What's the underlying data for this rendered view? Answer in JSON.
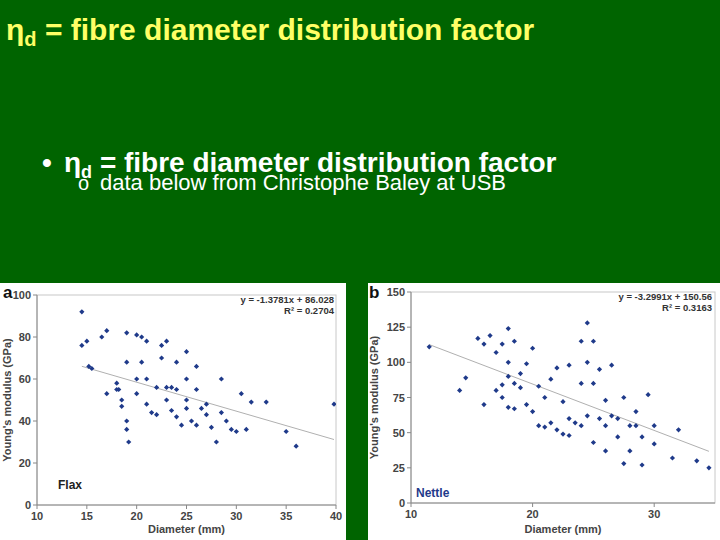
{
  "slide": {
    "title": {
      "symbol": "η",
      "subscript": "d",
      "text": " = fibre diameter distribution factor"
    },
    "bullets": [
      {
        "bullet": "•",
        "symbol": "η",
        "subscript": "d",
        "text": " = fibre diameter distribution factor",
        "children": [
          {
            "bullet": "o",
            "text": "data below from Christophe Baley at USB"
          }
        ]
      }
    ]
  },
  "chart_data": [
    {
      "type": "scatter",
      "panel": "a",
      "label": "Flax",
      "x_label": "Diameter (mm)",
      "y_label": "Young's modulus (GPa)",
      "annotations": [
        "y = -1.3781x + 86.028",
        "R² = 0.2704"
      ],
      "trendline": {
        "slope": -1.3781,
        "intercept": 86.028
      },
      "xlim": [
        10,
        40
      ],
      "ylim": [
        0,
        100
      ],
      "xticks": [
        10,
        15,
        20,
        25,
        30,
        35,
        40
      ],
      "yticks": [
        0,
        20,
        40,
        60,
        80,
        100
      ],
      "grid": false,
      "color": "#1f3a8a",
      "marker": "diamond",
      "x": [
        14.5,
        14.5,
        15,
        15.2,
        15.5,
        16.5,
        17,
        17,
        18,
        18.2,
        18.5,
        18.5,
        19,
        19,
        19.2,
        19,
        19,
        20,
        20,
        20,
        20.5,
        21,
        21,
        21,
        22,
        22.5,
        22.5,
        23,
        23,
        23,
        23.5,
        23.5,
        24,
        24,
        24,
        24.5,
        25,
        25,
        25,
        25,
        25.5,
        26,
        26,
        26,
        26.5,
        27,
        27,
        27.5,
        28,
        28.5,
        28.5,
        29,
        29.5,
        30,
        30.5,
        31,
        31.5,
        33,
        35,
        36,
        39.8,
        20.5,
        22,
        18,
        21.5
      ],
      "values": [
        92,
        76,
        78,
        66,
        65,
        80,
        83,
        53,
        58,
        55,
        50,
        47,
        40,
        36,
        30,
        68,
        82,
        81,
        60,
        53,
        80,
        78,
        60,
        48,
        43,
        76,
        70,
        78,
        56,
        50,
        56,
        45,
        68,
        55,
        42,
        38,
        73,
        60,
        50,
        46,
        40,
        66,
        55,
        38,
        46,
        48,
        43,
        37,
        30,
        60,
        44,
        40,
        36,
        35,
        53,
        36,
        49,
        49,
        35,
        28,
        48,
        68,
        56,
        55,
        44
      ]
    },
    {
      "type": "scatter",
      "panel": "b",
      "label": "Nettle",
      "x_label": "Diameter (mm)",
      "y_label": "Young's modulus (GPa)",
      "annotations": [
        "y = -3.2991x + 150.56",
        "R² = 0.3163"
      ],
      "trendline": {
        "slope": -3.2991,
        "intercept": 150.56
      },
      "xlim": [
        10,
        35
      ],
      "ylim": [
        0,
        150
      ],
      "xticks": [
        10,
        20,
        30
      ],
      "yticks": [
        0,
        25,
        50,
        75,
        100,
        125,
        150
      ],
      "grid": false,
      "color": "#1f3a8a",
      "marker": "diamond",
      "x": [
        11.5,
        14,
        14.5,
        15.5,
        16,
        16,
        16.5,
        17,
        17,
        17.5,
        17.5,
        17.5,
        18,
        18,
        18,
        18,
        18.5,
        18.5,
        18.5,
        19,
        19,
        19.5,
        19.5,
        20,
        20,
        20.5,
        20.5,
        21,
        21,
        21.5,
        21.5,
        22,
        22,
        22.5,
        22.5,
        23,
        23,
        23,
        23.5,
        24,
        24,
        24,
        24.5,
        24.5,
        24.5,
        25,
        25,
        25,
        25.5,
        25.5,
        26,
        26,
        26,
        26.5,
        26.5,
        27,
        27,
        27.5,
        28,
        28,
        28.5,
        29,
        29,
        29.5,
        30,
        30,
        31.5,
        32,
        33.5,
        34.5,
        27.5,
        28.5
      ],
      "values": [
        111,
        80,
        89,
        117,
        113,
        70,
        119,
        80,
        107,
        84,
        75,
        113,
        124,
        100,
        90,
        68,
        115,
        85,
        67,
        92,
        82,
        99,
        70,
        110,
        65,
        83,
        55,
        75,
        54,
        88,
        57,
        96,
        52,
        72,
        49,
        98,
        60,
        48,
        57,
        115,
        85,
        55,
        128,
        100,
        62,
        115,
        85,
        43,
        95,
        60,
        73,
        55,
        37,
        98,
        62,
        60,
        47,
        28,
        55,
        37,
        55,
        47,
        27,
        77,
        55,
        42,
        32,
        52,
        30,
        25,
        75,
        65
      ]
    }
  ]
}
